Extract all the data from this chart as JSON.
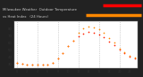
{
  "title_line1": "Milwaukee Weather  Outdoor Temperature",
  "title_line2": "vs Heat Index",
  "title_line3": "(24 Hours)",
  "title_fontsize": 2.8,
  "title_bg_color": "#222222",
  "title_text_color": "#cccccc",
  "plot_bg_color": "#ffffff",
  "fig_bg_color": "#222222",
  "hours": [
    0,
    1,
    2,
    3,
    4,
    5,
    6,
    7,
    8,
    9,
    10,
    11,
    12,
    13,
    14,
    15,
    16,
    17,
    18,
    19,
    20,
    21,
    22,
    23
  ],
  "temp": [
    32,
    31,
    30,
    30,
    29,
    29,
    30,
    32,
    38,
    46,
    55,
    63,
    69,
    73,
    75,
    74,
    72,
    68,
    62,
    57,
    50,
    45,
    41,
    38
  ],
  "heat_index": [
    32,
    31,
    30,
    30,
    29,
    29,
    30,
    32,
    38,
    46,
    55,
    63,
    74,
    80,
    83,
    82,
    79,
    74,
    67,
    61,
    52,
    47,
    42,
    39
  ],
  "temp_color": "#ff2200",
  "heat_index_color": "#ff8800",
  "legend_red_color": "#ff0000",
  "legend_orange_color": "#ff8800",
  "ylim": [
    25,
    90
  ],
  "xlim": [
    -0.5,
    23.5
  ],
  "ytick_values": [
    30,
    40,
    50,
    60,
    70,
    80
  ],
  "ytick_fontsize": 2.8,
  "xtick_fontsize": 2.5,
  "grid_color": "#999999",
  "marker_size": 1.5,
  "grid_hours": [
    0,
    4,
    8,
    12,
    16,
    20
  ],
  "legend_red_bar_xstart": 0.72,
  "legend_red_bar_xend": 0.99,
  "legend_orange_bar_xstart": 0.6,
  "legend_orange_bar_xend": 0.99
}
